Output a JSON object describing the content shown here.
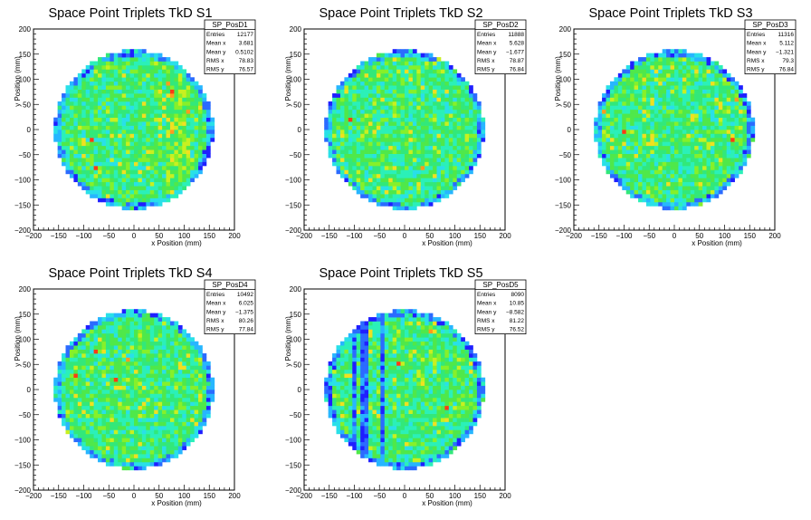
{
  "chart_data": [
    {
      "type": "heatmap",
      "title": "Space Point Triplets TkD S1",
      "xlabel": "x Position (mm)",
      "ylabel": "y Position (mm)",
      "xlim": [
        -200,
        200
      ],
      "ylim": [
        -200,
        200
      ],
      "xticks": [
        -200,
        -150,
        -100,
        -50,
        0,
        50,
        100,
        150,
        200
      ],
      "yticks": [
        -200,
        -150,
        -100,
        -50,
        0,
        50,
        100,
        150,
        200
      ],
      "bin_size_mm": 8,
      "disk_radius_mm": 160,
      "stats": {
        "name": "SP_PosD1",
        "rows": [
          {
            "label": "Entries",
            "value": "12177"
          },
          {
            "label": "Mean x",
            "value": "3.681"
          },
          {
            "label": "Mean y",
            "value": "0.5102"
          },
          {
            "label": "RMS x",
            "value": "78.83"
          },
          {
            "label": "RMS y",
            "value": "76.57"
          }
        ]
      }
    },
    {
      "type": "heatmap",
      "title": "Space Point Triplets TkD S2",
      "xlabel": "x Position (mm)",
      "ylabel": "y Position (mm)",
      "xlim": [
        -200,
        200
      ],
      "ylim": [
        -200,
        200
      ],
      "xticks": [
        -200,
        -150,
        -100,
        -50,
        0,
        50,
        100,
        150,
        200
      ],
      "yticks": [
        -200,
        -150,
        -100,
        -50,
        0,
        50,
        100,
        150,
        200
      ],
      "bin_size_mm": 8,
      "disk_radius_mm": 160,
      "stats": {
        "name": "SP_PosD2",
        "rows": [
          {
            "label": "Entries",
            "value": "11888"
          },
          {
            "label": "Mean x",
            "value": "5.628"
          },
          {
            "label": "Mean y",
            "value": "-1.677"
          },
          {
            "label": "RMS x",
            "value": "78.87"
          },
          {
            "label": "RMS y",
            "value": "76.84"
          }
        ]
      }
    },
    {
      "type": "heatmap",
      "title": "Space Point Triplets TkD S3",
      "xlabel": "x Position (mm)",
      "ylabel": "y Position (mm)",
      "xlim": [
        -200,
        200
      ],
      "ylim": [
        -200,
        200
      ],
      "xticks": [
        -200,
        -150,
        -100,
        -50,
        0,
        50,
        100,
        150,
        200
      ],
      "yticks": [
        -200,
        -150,
        -100,
        -50,
        0,
        50,
        100,
        150,
        200
      ],
      "bin_size_mm": 8,
      "disk_radius_mm": 160,
      "stats": {
        "name": "SP_PosD3",
        "rows": [
          {
            "label": "Entries",
            "value": "11316"
          },
          {
            "label": "Mean x",
            "value": "5.112"
          },
          {
            "label": "Mean y",
            "value": "-1.321"
          },
          {
            "label": "RMS x",
            "value": "79.3"
          },
          {
            "label": "RMS y",
            "value": "76.84"
          }
        ]
      }
    },
    {
      "type": "heatmap",
      "title": "Space Point Triplets TkD S4",
      "xlabel": "x Position (mm)",
      "ylabel": "y Position (mm)",
      "xlim": [
        -200,
        200
      ],
      "ylim": [
        -200,
        200
      ],
      "xticks": [
        -200,
        -150,
        -100,
        -50,
        0,
        50,
        100,
        150,
        200
      ],
      "yticks": [
        -200,
        -150,
        -100,
        -50,
        0,
        50,
        100,
        150,
        200
      ],
      "bin_size_mm": 8,
      "disk_radius_mm": 160,
      "stats": {
        "name": "SP_PosD4",
        "rows": [
          {
            "label": "Entries",
            "value": "10492"
          },
          {
            "label": "Mean x",
            "value": "6.025"
          },
          {
            "label": "Mean y",
            "value": "-1.375"
          },
          {
            "label": "RMS x",
            "value": "80.26"
          },
          {
            "label": "RMS y",
            "value": "77.84"
          }
        ]
      }
    },
    {
      "type": "heatmap",
      "title": "Space Point Triplets TkD S5",
      "xlabel": "x Position (mm)",
      "ylabel": "y Position (mm)",
      "xlim": [
        -200,
        200
      ],
      "ylim": [
        -200,
        200
      ],
      "xticks": [
        -200,
        -150,
        -100,
        -50,
        0,
        50,
        100,
        150,
        200
      ],
      "yticks": [
        -200,
        -150,
        -100,
        -50,
        0,
        50,
        100,
        150,
        200
      ],
      "bin_size_mm": 8,
      "disk_radius_mm": 160,
      "low_efficiency_x_bands_mm": [
        [
          -100,
          -92
        ],
        [
          -84,
          -68
        ],
        [
          -44,
          -36
        ]
      ],
      "stats": {
        "name": "SP_PosD5",
        "rows": [
          {
            "label": "Entries",
            "value": "8090"
          },
          {
            "label": "Mean x",
            "value": "10.85"
          },
          {
            "label": "Mean y",
            "value": "-8.582"
          },
          {
            "label": "RMS x",
            "value": "81.22"
          },
          {
            "label": "RMS y",
            "value": "76.52"
          }
        ]
      }
    }
  ]
}
